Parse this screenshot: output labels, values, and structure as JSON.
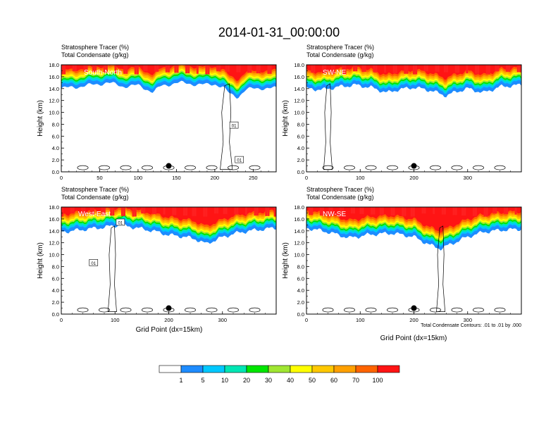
{
  "title": "2014-01-31_00:00:00",
  "chart_data": {
    "type": "heatmap",
    "shared": {
      "series_labels": [
        "Stratosphere Tracer   (%)",
        "Total Condensate   (g/kg)"
      ],
      "ylabel": "Height (km)",
      "xlabel": "Grid Point (dx=15km)",
      "ylim": [
        0,
        18
      ],
      "ytick_labels": [
        "0.0",
        "2.0",
        "4.0",
        "6.0",
        "8.0",
        "10.0",
        "12.0",
        "14.0",
        "16.0",
        "18.0"
      ],
      "contour_note": "Total Condensate Contours: .01 to .01 by .000",
      "contour_label": "01"
    },
    "colorbar": {
      "colors": [
        "#ffffff",
        "#1e8cff",
        "#00c8ff",
        "#00e6b4",
        "#00e600",
        "#a0e632",
        "#ffff00",
        "#ffc800",
        "#ffa000",
        "#ff6400",
        "#ff1414"
      ],
      "labels": [
        "1",
        "5",
        "10",
        "20",
        "30",
        "40",
        "50",
        "60",
        "70",
        "100"
      ]
    },
    "panels": [
      {
        "label": "South-North",
        "xlim": [
          0,
          280
        ],
        "xtick_labels": [
          "0",
          "50",
          "100",
          "150",
          "200",
          "250"
        ],
        "xticks": [
          0,
          50,
          100,
          150,
          200,
          250
        ],
        "marker_x": 140,
        "marker_y": 1.0,
        "tracer_base": [
          [
            0,
            14.0
          ],
          [
            20,
            14.3
          ],
          [
            40,
            14.6
          ],
          [
            60,
            15.0
          ],
          [
            80,
            14.4
          ],
          [
            100,
            14.5
          ],
          [
            110,
            14.0
          ],
          [
            120,
            13.4
          ],
          [
            130,
            14.4
          ],
          [
            150,
            15.0
          ],
          [
            170,
            14.8
          ],
          [
            190,
            14.6
          ],
          [
            200,
            14.8
          ],
          [
            210,
            14.3
          ],
          [
            220,
            13.0
          ],
          [
            230,
            12.6
          ],
          [
            240,
            13.8
          ],
          [
            260,
            14.1
          ],
          [
            280,
            14.0
          ]
        ],
        "contour_labels": [
          [
            225,
            7.8
          ],
          [
            232,
            2.0
          ]
        ]
      },
      {
        "label": "SW-NE",
        "xlim": [
          0,
          400
        ],
        "xtick_labels": [
          "0",
          "100",
          "200",
          "300"
        ],
        "xticks": [
          0,
          100,
          200,
          300
        ],
        "marker_x": 200,
        "marker_y": 1.0,
        "tracer_base": [
          [
            0,
            14.0
          ],
          [
            30,
            13.8
          ],
          [
            60,
            14.3
          ],
          [
            90,
            14.6
          ],
          [
            120,
            14.2
          ],
          [
            150,
            13.3
          ],
          [
            170,
            13.8
          ],
          [
            200,
            14.2
          ],
          [
            230,
            13.7
          ],
          [
            260,
            12.8
          ],
          [
            280,
            13.5
          ],
          [
            300,
            14.0
          ],
          [
            330,
            13.3
          ],
          [
            360,
            14.3
          ],
          [
            400,
            14.6
          ]
        ],
        "contour_labels": []
      },
      {
        "label": "West-East",
        "xlim": [
          0,
          400
        ],
        "xtick_labels": [
          "0",
          "100",
          "200",
          "300"
        ],
        "xticks": [
          0,
          100,
          200,
          300
        ],
        "marker_x": 200,
        "marker_y": 1.0,
        "tracer_base": [
          [
            0,
            13.8
          ],
          [
            40,
            14.2
          ],
          [
            80,
            14.6
          ],
          [
            110,
            15.0
          ],
          [
            140,
            14.5
          ],
          [
            170,
            14.0
          ],
          [
            200,
            13.3
          ],
          [
            230,
            13.0
          ],
          [
            250,
            12.6
          ],
          [
            270,
            11.8
          ],
          [
            290,
            12.6
          ],
          [
            320,
            13.5
          ],
          [
            350,
            14.0
          ],
          [
            380,
            14.3
          ],
          [
            400,
            14.5
          ]
        ],
        "contour_labels": [
          [
            110,
            15.4
          ],
          [
            60,
            8.6
          ]
        ]
      },
      {
        "label": "NW-SE",
        "xlim": [
          0,
          400
        ],
        "xtick_labels": [
          "0",
          "100",
          "200",
          "300"
        ],
        "xticks": [
          0,
          100,
          200,
          300
        ],
        "marker_x": 200,
        "marker_y": 1.0,
        "tracer_base": [
          [
            0,
            14.5
          ],
          [
            40,
            13.8
          ],
          [
            80,
            12.8
          ],
          [
            120,
            13.4
          ],
          [
            160,
            13.6
          ],
          [
            200,
            13.0
          ],
          [
            230,
            11.6
          ],
          [
            250,
            11.0
          ],
          [
            270,
            11.8
          ],
          [
            300,
            13.0
          ],
          [
            330,
            13.8
          ],
          [
            360,
            14.1
          ],
          [
            400,
            14.3
          ]
        ],
        "contour_labels": []
      }
    ]
  }
}
